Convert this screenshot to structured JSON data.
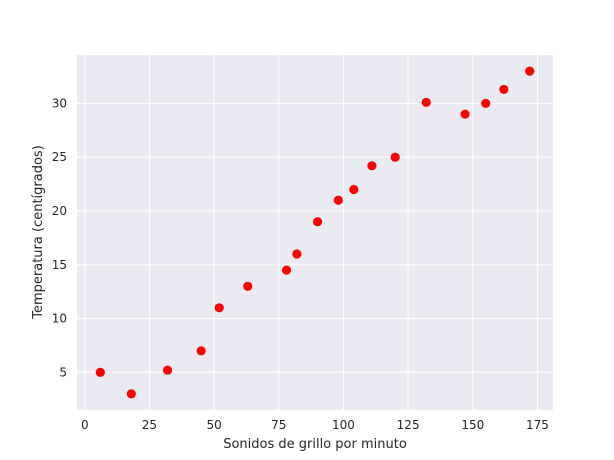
{
  "chart_data": {
    "type": "scatter",
    "title": "",
    "xlabel": "Sonidos de grillo por minuto",
    "ylabel": "Temperatura (centígrados)",
    "xlim": [
      -3,
      181
    ],
    "ylim": [
      1.5,
      34.5
    ],
    "xticks": [
      0,
      25,
      50,
      75,
      100,
      125,
      150,
      175
    ],
    "yticks": [
      5,
      10,
      15,
      20,
      25,
      30
    ],
    "grid": true,
    "background_color": "#eaeaf2",
    "grid_color": "#ffffff",
    "marker_color": "#ff0000",
    "points": [
      {
        "x": 6,
        "y": 5
      },
      {
        "x": 18,
        "y": 3
      },
      {
        "x": 32,
        "y": 5.2
      },
      {
        "x": 45,
        "y": 7
      },
      {
        "x": 52,
        "y": 11
      },
      {
        "x": 63,
        "y": 13
      },
      {
        "x": 78,
        "y": 14.5
      },
      {
        "x": 82,
        "y": 16
      },
      {
        "x": 90,
        "y": 19
      },
      {
        "x": 98,
        "y": 21
      },
      {
        "x": 104,
        "y": 22
      },
      {
        "x": 111,
        "y": 24.2
      },
      {
        "x": 120,
        "y": 25
      },
      {
        "x": 132,
        "y": 30.1
      },
      {
        "x": 147,
        "y": 29
      },
      {
        "x": 155,
        "y": 30
      },
      {
        "x": 162,
        "y": 31.3
      },
      {
        "x": 172,
        "y": 33
      }
    ]
  }
}
